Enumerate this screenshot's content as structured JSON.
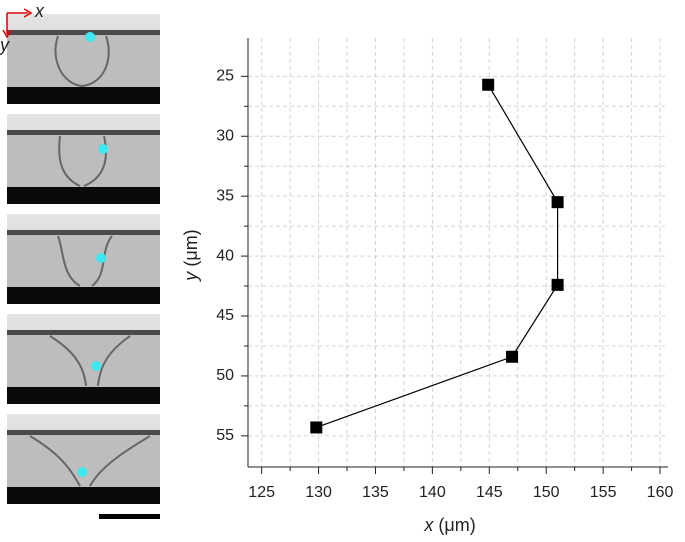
{
  "chart_data": {
    "type": "line",
    "xlabel_var": "x",
    "xlabel_unit": "(μm)",
    "ylabel_var": "y",
    "ylabel_unit": "(μm)",
    "inset_axes": {
      "x": "x",
      "y": "y"
    },
    "series": [
      {
        "color": "#000000",
        "marker": "square",
        "x": [
          144.9,
          151.0,
          151.0,
          147.0,
          129.8
        ],
        "values": [
          25.7,
          35.5,
          42.4,
          48.4,
          54.3
        ]
      }
    ],
    "xlim": [
      123.8,
      160.7
    ],
    "xticks": [
      125,
      130,
      135,
      140,
      145,
      150,
      155,
      160
    ],
    "ylim": [
      21.8,
      57.6
    ],
    "yticks": [
      25,
      30,
      35,
      40,
      45,
      50,
      55
    ],
    "y_inverted": true,
    "grid": true,
    "minor_ticks": true
  }
}
